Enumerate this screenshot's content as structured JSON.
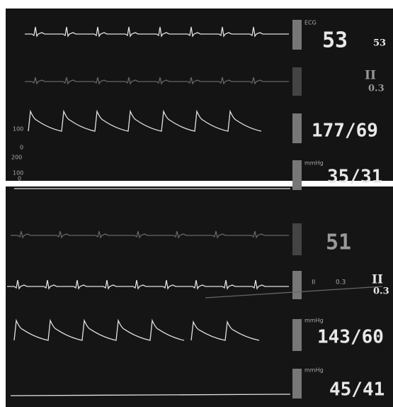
{
  "top": {
    "ecg_label": "ECG",
    "hr": "53",
    "hr_small": "53",
    "lead": "II",
    "gain": "0.3",
    "art": "177/69",
    "pap": "35/31",
    "pap_unit": "mmHg",
    "art_scale": [
      "100",
      "0"
    ],
    "pap_scale": [
      "200",
      "100",
      "0"
    ]
  },
  "bottom": {
    "hr": "51",
    "lead_small": "II",
    "gain_small": "0.3",
    "lead": "II",
    "gain": "0.3",
    "art": "143/60",
    "art_unit": "mmHg",
    "pap": "45/41",
    "pap_unit": "mmHg"
  }
}
